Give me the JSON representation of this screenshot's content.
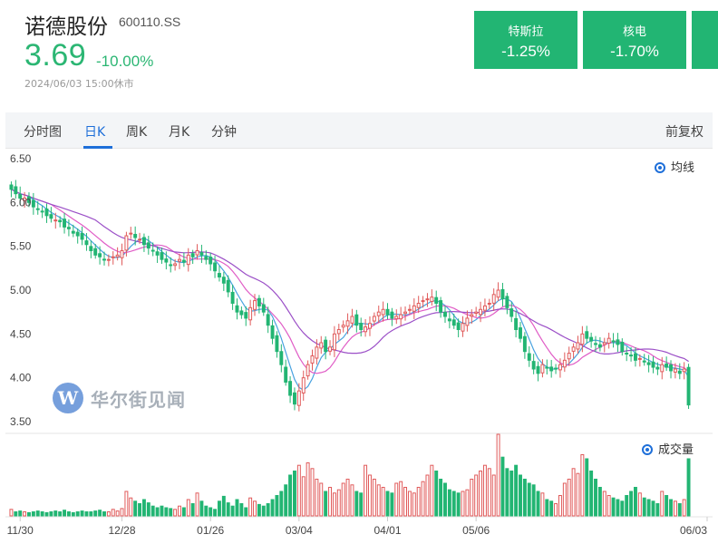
{
  "stock": {
    "name": "诺德股份",
    "code": "600110.SS",
    "price": "3.69",
    "change_pct": "-10.00%",
    "time": "2024/06/03 15:00休市"
  },
  "concepts": [
    {
      "name": "特斯拉",
      "value": "-1.25%"
    },
    {
      "name": "核电",
      "value": "-1.70%"
    }
  ],
  "tabs": {
    "items": [
      "分时图",
      "日K",
      "周K",
      "月K",
      "分钟"
    ],
    "active": "日K",
    "restore_label": "前复权"
  },
  "legends": {
    "ma_label": "均线",
    "volume_label": "成交量"
  },
  "watermark": {
    "logo_letter": "W",
    "text": "华尔街见闻"
  },
  "colors": {
    "up": "#e05a5a",
    "down": "#22b573",
    "ma5": "#4aa3e0",
    "ma10": "#e05cc6",
    "ma20": "#9b4fc7",
    "accent": "#1e6fd9"
  },
  "chart_data": {
    "type": "candlestick",
    "ylim": [
      3.5,
      6.5
    ],
    "y_ticks": [
      "6.50",
      "6.00",
      "5.50",
      "5.00",
      "4.50",
      "4.00",
      "3.50"
    ],
    "x_ticks": [
      "11/30",
      "12/28",
      "01/26",
      "03/04",
      "04/01",
      "05/06",
      "06/03"
    ],
    "closes": [
      6.15,
      6.1,
      6.05,
      6.05,
      6.0,
      5.95,
      5.92,
      5.9,
      5.85,
      5.82,
      5.8,
      5.78,
      5.72,
      5.7,
      5.65,
      5.62,
      5.58,
      5.52,
      5.45,
      5.4,
      5.38,
      5.35,
      5.35,
      5.38,
      5.4,
      5.45,
      5.62,
      5.65,
      5.6,
      5.58,
      5.52,
      5.48,
      5.45,
      5.4,
      5.35,
      5.32,
      5.28,
      5.3,
      5.35,
      5.32,
      5.4,
      5.38,
      5.45,
      5.4,
      5.35,
      5.3,
      5.22,
      5.15,
      5.08,
      4.98,
      4.85,
      4.75,
      4.72,
      4.68,
      4.8,
      4.88,
      4.82,
      4.75,
      4.6,
      4.45,
      4.3,
      4.15,
      3.95,
      3.8,
      3.7,
      3.85,
      4.0,
      4.15,
      4.25,
      4.35,
      4.4,
      4.3,
      4.35,
      4.5,
      4.55,
      4.6,
      4.65,
      4.7,
      4.6,
      4.55,
      4.58,
      4.62,
      4.7,
      4.75,
      4.78,
      4.72,
      4.68,
      4.7,
      4.72,
      4.75,
      4.78,
      4.82,
      4.85,
      4.88,
      4.9,
      4.92,
      4.85,
      4.75,
      4.7,
      4.65,
      4.6,
      4.55,
      4.62,
      4.68,
      4.72,
      4.75,
      4.78,
      4.82,
      4.85,
      4.95,
      5.0,
      4.9,
      4.8,
      4.7,
      4.55,
      4.45,
      4.3,
      4.2,
      4.1,
      4.05,
      4.15,
      4.12,
      4.08,
      4.1,
      4.15,
      4.2,
      4.28,
      4.35,
      4.4,
      4.5,
      4.45,
      4.42,
      4.38,
      4.35,
      4.4,
      4.45,
      4.42,
      4.38,
      4.3,
      4.28,
      4.25,
      4.2,
      4.22,
      4.18,
      4.15,
      4.12,
      4.1,
      4.15,
      4.12,
      4.08,
      4.1,
      4.05,
      4.1,
      3.69
    ],
    "volumes": [
      0.08,
      0.05,
      0.06,
      0.05,
      0.04,
      0.05,
      0.06,
      0.05,
      0.04,
      0.05,
      0.06,
      0.05,
      0.07,
      0.05,
      0.04,
      0.05,
      0.06,
      0.05,
      0.05,
      0.06,
      0.07,
      0.05,
      0.05,
      0.08,
      0.06,
      0.09,
      0.3,
      0.22,
      0.18,
      0.15,
      0.2,
      0.16,
      0.12,
      0.1,
      0.12,
      0.1,
      0.09,
      0.08,
      0.12,
      0.1,
      0.2,
      0.15,
      0.28,
      0.18,
      0.12,
      0.1,
      0.08,
      0.18,
      0.24,
      0.16,
      0.12,
      0.2,
      0.15,
      0.1,
      0.22,
      0.18,
      0.14,
      0.12,
      0.15,
      0.2,
      0.25,
      0.3,
      0.38,
      0.5,
      0.55,
      0.62,
      0.48,
      0.65,
      0.58,
      0.45,
      0.4,
      0.3,
      0.35,
      0.28,
      0.32,
      0.4,
      0.45,
      0.38,
      0.3,
      0.28,
      0.62,
      0.5,
      0.45,
      0.38,
      0.35,
      0.3,
      0.28,
      0.4,
      0.42,
      0.35,
      0.3,
      0.28,
      0.35,
      0.42,
      0.5,
      0.62,
      0.55,
      0.45,
      0.4,
      0.32,
      0.3,
      0.28,
      0.3,
      0.32,
      0.45,
      0.5,
      0.55,
      0.62,
      0.58,
      0.5,
      1.0,
      0.72,
      0.58,
      0.55,
      0.62,
      0.5,
      0.45,
      0.4,
      0.38,
      0.3,
      0.28,
      0.2,
      0.18,
      0.15,
      0.25,
      0.4,
      0.45,
      0.58,
      0.52,
      0.75,
      0.7,
      0.55,
      0.45,
      0.35,
      0.3,
      0.25,
      0.22,
      0.2,
      0.18,
      0.25,
      0.3,
      0.35,
      0.28,
      0.22,
      0.2,
      0.18,
      0.15,
      0.3,
      0.25,
      0.2,
      0.18,
      0.15,
      0.2,
      0.7
    ]
  }
}
